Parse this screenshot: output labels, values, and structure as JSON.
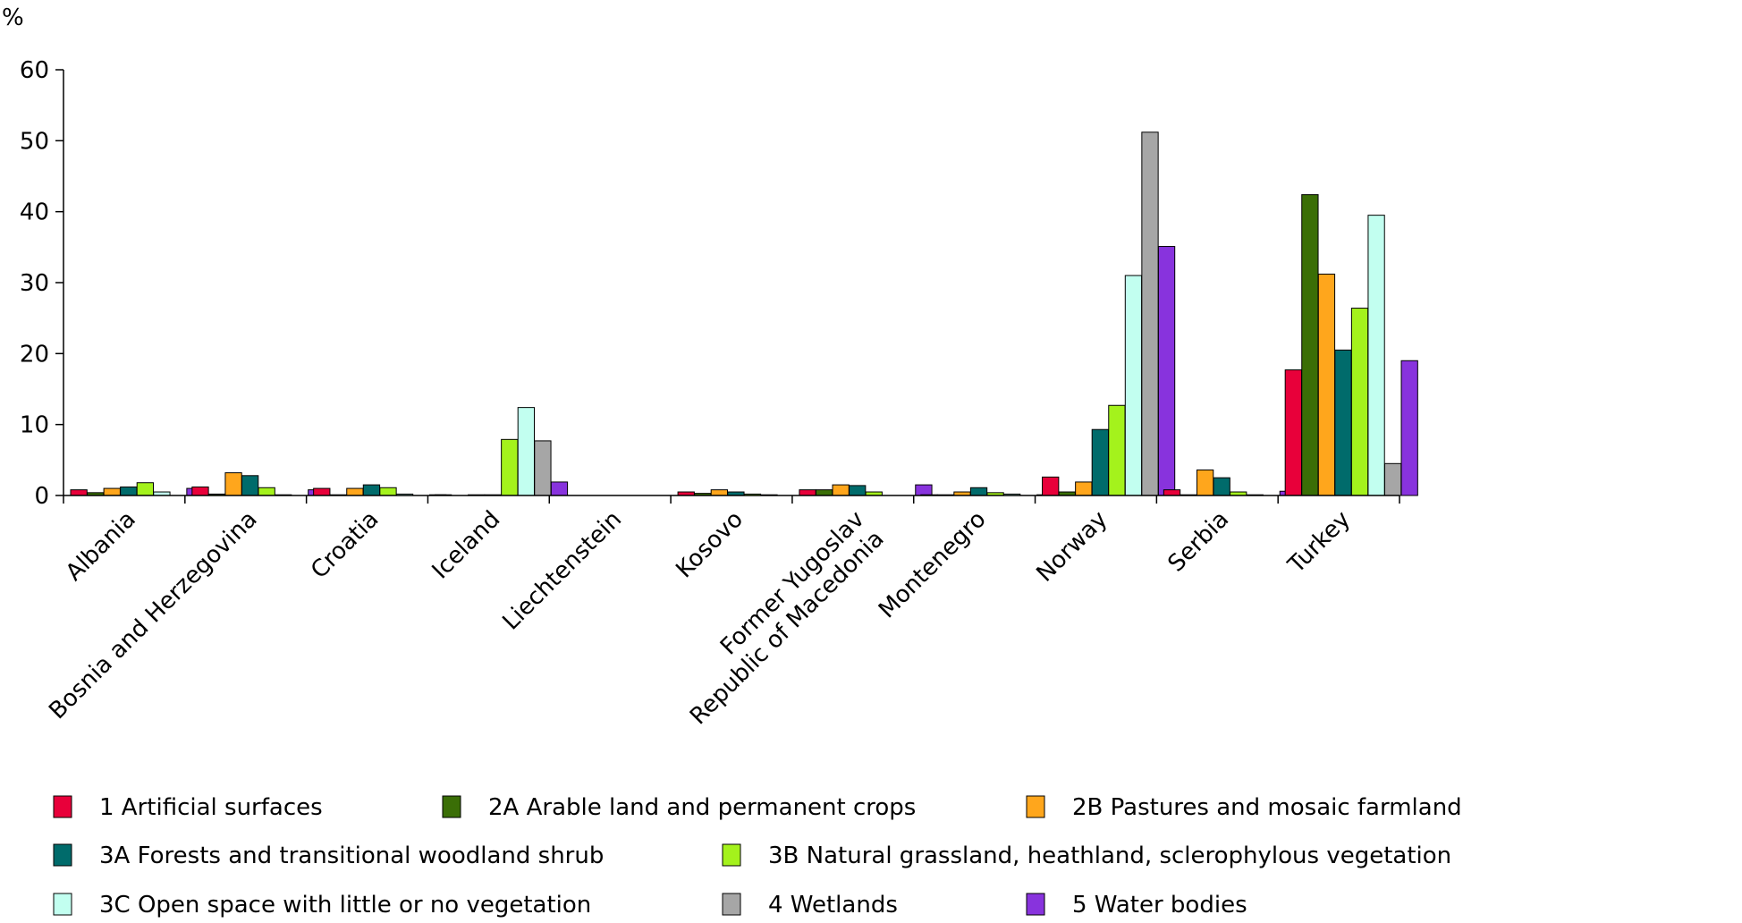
{
  "chart_data": {
    "type": "bar",
    "title": "",
    "xlabel": "",
    "ylabel": "%",
    "ylim": [
      0,
      60
    ],
    "yticks": [
      0,
      10,
      20,
      30,
      40,
      50,
      60
    ],
    "grid": false,
    "legend_position": "bottom",
    "categories": [
      [
        "Albania"
      ],
      [
        "Bosnia and Herzegovina"
      ],
      [
        "Croatia"
      ],
      [
        "Iceland"
      ],
      [
        "Liechtenstein"
      ],
      [
        "Kosovo"
      ],
      [
        "Former Yugoslav",
        "Republic of Macedonia"
      ],
      [
        "Montenegro"
      ],
      [
        "Norway"
      ],
      [
        "Serbia"
      ],
      [
        "Turkey"
      ]
    ],
    "series": [
      {
        "name": "1 Artificial surfaces",
        "color": "#e8003a",
        "values": [
          0.8,
          1.2,
          1.0,
          0.1,
          0.0,
          0.5,
          0.8,
          0.1,
          2.6,
          0.8,
          17.7
        ]
      },
      {
        "name": "2A Arable land and permanent crops",
        "color": "#3a6e06",
        "values": [
          0.4,
          0.2,
          0.1,
          0.0,
          0.0,
          0.3,
          0.8,
          0.1,
          0.5,
          0.1,
          42.4
        ]
      },
      {
        "name": "2B Pastures and mosaic farmland",
        "color": "#ffa61c",
        "values": [
          1.0,
          3.2,
          1.0,
          0.1,
          0.0,
          0.8,
          1.5,
          0.5,
          1.9,
          3.6,
          31.2
        ]
      },
      {
        "name": "3A Forests and transitional woodland shrub",
        "color": "#006b6b",
        "values": [
          1.2,
          2.8,
          1.5,
          0.1,
          0.0,
          0.5,
          1.4,
          1.1,
          9.3,
          2.5,
          20.5
        ]
      },
      {
        "name": "3B Natural grassland, heathland, sclerophylous vegetation",
        "color": "#a4f21c",
        "values": [
          1.8,
          1.1,
          1.1,
          7.9,
          0.0,
          0.2,
          0.5,
          0.4,
          12.7,
          0.5,
          26.4
        ]
      },
      {
        "name": "3C Open space with little or no vegetation",
        "color": "#c2fff0",
        "values": [
          0.5,
          0.1,
          0.2,
          12.4,
          0.0,
          0.1,
          0.0,
          0.2,
          31.0,
          0.1,
          39.5
        ]
      },
      {
        "name": "4 Wetlands",
        "color": "#a6a6a6",
        "values": [
          0.0,
          0.0,
          0.0,
          7.7,
          0.0,
          0.0,
          0.0,
          0.0,
          51.2,
          0.0,
          4.5
        ]
      },
      {
        "name": "5 Water bodies",
        "color": "#8833dd",
        "values": [
          1.0,
          0.8,
          0.1,
          1.9,
          0.0,
          0.0,
          1.5,
          0.1,
          35.1,
          0.6,
          19.0
        ]
      }
    ]
  }
}
